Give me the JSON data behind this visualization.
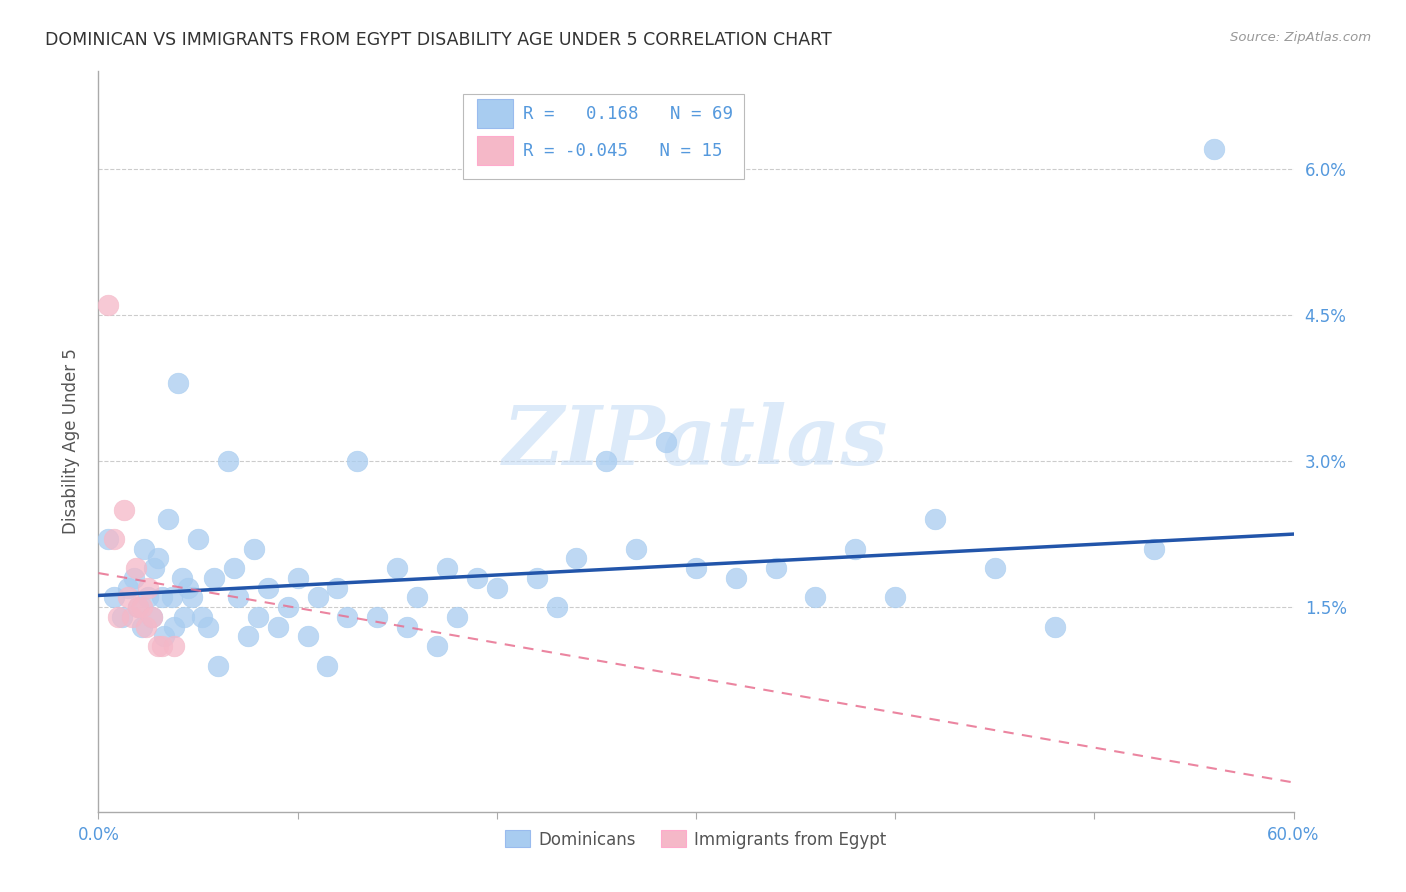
{
  "title": "DOMINICAN VS IMMIGRANTS FROM EGYPT DISABILITY AGE UNDER 5 CORRELATION CHART",
  "source": "Source: ZipAtlas.com",
  "ylabel": "Disability Age Under 5",
  "xlim": [
    0.0,
    0.6
  ],
  "ylim": [
    -0.006,
    0.07
  ],
  "yticks": [
    0.0,
    0.015,
    0.03,
    0.045,
    0.06
  ],
  "ytick_labels": [
    "",
    "1.5%",
    "3.0%",
    "4.5%",
    "6.0%"
  ],
  "blue_R": 0.168,
  "blue_N": 69,
  "pink_R": -0.045,
  "pink_N": 15,
  "blue_color": "#A8CCF0",
  "pink_color": "#F5B8C8",
  "trend_blue_color": "#2255AA",
  "trend_pink_color": "#E87090",
  "grid_color": "#CCCCCC",
  "axis_color": "#AAAAAA",
  "title_color": "#333333",
  "label_color": "#5599DD",
  "watermark_color": "#C5DCF5",
  "watermark": "ZIPatlas",
  "blue_x": [
    0.005,
    0.008,
    0.012,
    0.015,
    0.018,
    0.02,
    0.022,
    0.023,
    0.025,
    0.027,
    0.028,
    0.03,
    0.032,
    0.033,
    0.035,
    0.037,
    0.038,
    0.04,
    0.042,
    0.043,
    0.045,
    0.047,
    0.05,
    0.052,
    0.055,
    0.058,
    0.06,
    0.065,
    0.068,
    0.07,
    0.075,
    0.078,
    0.08,
    0.085,
    0.09,
    0.095,
    0.1,
    0.105,
    0.11,
    0.115,
    0.12,
    0.125,
    0.13,
    0.14,
    0.15,
    0.155,
    0.16,
    0.17,
    0.175,
    0.18,
    0.19,
    0.2,
    0.22,
    0.23,
    0.24,
    0.255,
    0.27,
    0.285,
    0.3,
    0.32,
    0.34,
    0.36,
    0.38,
    0.4,
    0.42,
    0.45,
    0.48,
    0.53,
    0.56
  ],
  "blue_y": [
    0.022,
    0.016,
    0.014,
    0.017,
    0.018,
    0.015,
    0.013,
    0.021,
    0.016,
    0.014,
    0.019,
    0.02,
    0.016,
    0.012,
    0.024,
    0.016,
    0.013,
    0.038,
    0.018,
    0.014,
    0.017,
    0.016,
    0.022,
    0.014,
    0.013,
    0.018,
    0.009,
    0.03,
    0.019,
    0.016,
    0.012,
    0.021,
    0.014,
    0.017,
    0.013,
    0.015,
    0.018,
    0.012,
    0.016,
    0.009,
    0.017,
    0.014,
    0.03,
    0.014,
    0.019,
    0.013,
    0.016,
    0.011,
    0.019,
    0.014,
    0.018,
    0.017,
    0.018,
    0.015,
    0.02,
    0.03,
    0.021,
    0.032,
    0.019,
    0.018,
    0.019,
    0.016,
    0.021,
    0.016,
    0.024,
    0.019,
    0.013,
    0.021,
    0.062
  ],
  "pink_x": [
    0.005,
    0.008,
    0.01,
    0.013,
    0.015,
    0.017,
    0.019,
    0.02,
    0.022,
    0.024,
    0.025,
    0.027,
    0.03,
    0.032,
    0.038
  ],
  "pink_y": [
    0.046,
    0.022,
    0.014,
    0.025,
    0.016,
    0.014,
    0.019,
    0.015,
    0.015,
    0.013,
    0.017,
    0.014,
    0.011,
    0.011,
    0.011
  ],
  "blue_trend_x0": 0.0,
  "blue_trend_y0": 0.0162,
  "blue_trend_x1": 0.6,
  "blue_trend_y1": 0.0225,
  "pink_trend_x0": 0.0,
  "pink_trend_y0": 0.0185,
  "pink_trend_x1": 0.6,
  "pink_trend_y1": -0.003
}
